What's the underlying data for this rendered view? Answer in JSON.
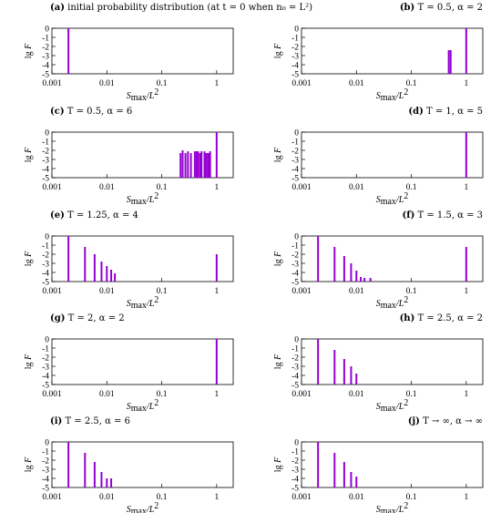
{
  "figure": {
    "xlabel_main": "S",
    "xlabel_sub": "max",
    "xlabel_rest": "/L",
    "xlabel_sup": "2",
    "ylabel_main": "lg ",
    "ylabel_var": "F"
  },
  "chart_data": [
    {
      "id": "a",
      "title_tag": "(a)",
      "title_text": "initial probability distribution (at t = 0 when n₀ = L²)",
      "type": "bar",
      "color": "#9400d3",
      "x_scale": "log",
      "xlim": [
        0.001,
        2
      ],
      "ylim": [
        -5,
        0
      ],
      "x_ticks": [
        "0.001",
        "0.01",
        "0.1",
        "1"
      ],
      "y_ticks": [
        "0",
        "-1",
        "-2",
        "-3",
        "-4",
        "-5"
      ],
      "x": [
        0.002
      ],
      "y": [
        0
      ]
    },
    {
      "id": "b",
      "title_tag": "(b)",
      "title_text": "T = 0.5, α = 2",
      "type": "bar",
      "color": "#9400d3",
      "x_scale": "log",
      "xlim": [
        0.001,
        2
      ],
      "ylim": [
        -5,
        0
      ],
      "x_ticks": [
        "0.001",
        "0.01",
        "0.1",
        "1"
      ],
      "y_ticks": [
        "0",
        "-1",
        "-2",
        "-3",
        "-4",
        "-5"
      ],
      "x": [
        0.48,
        0.52,
        1.0
      ],
      "y": [
        -2.4,
        -2.4,
        0
      ]
    },
    {
      "id": "c",
      "title_tag": "(c)",
      "title_text": "T = 0.5, α = 6",
      "type": "bar",
      "color": "#9400d3",
      "x_scale": "log",
      "xlim": [
        0.001,
        2
      ],
      "ylim": [
        -5,
        0
      ],
      "x_ticks": [
        "0.001",
        "0.01",
        "0.1",
        "1"
      ],
      "y_ticks": [
        "0",
        "-1",
        "-2",
        "-3",
        "-4",
        "-5"
      ],
      "x": [
        0.22,
        0.24,
        0.27,
        0.3,
        0.34,
        0.4,
        0.43,
        0.46,
        0.5,
        0.53,
        0.6,
        0.64,
        0.69,
        0.72,
        0.76,
        1.0
      ],
      "y": [
        -2.3,
        -2.0,
        -2.3,
        -2.1,
        -2.3,
        -2.1,
        -2.1,
        -2.1,
        -2.3,
        -2.1,
        -2.1,
        -2.3,
        -2.3,
        -2.3,
        -2.1,
        0
      ]
    },
    {
      "id": "d",
      "title_tag": "(d)",
      "title_text": "T = 1, α = 5",
      "type": "bar",
      "color": "#9400d3",
      "x_scale": "log",
      "xlim": [
        0.001,
        2
      ],
      "ylim": [
        -5,
        0
      ],
      "x_ticks": [
        "0.001",
        "0.01",
        "0.1",
        "1"
      ],
      "y_ticks": [
        "0",
        "-1",
        "-2",
        "-3",
        "-4",
        "-5"
      ],
      "x": [
        1.0
      ],
      "y": [
        0
      ]
    },
    {
      "id": "e",
      "title_tag": "(e)",
      "title_text": "T = 1.25, α = 4",
      "type": "bar",
      "color": "#9400d3",
      "x_scale": "log",
      "xlim": [
        0.001,
        2
      ],
      "ylim": [
        -5,
        0
      ],
      "x_ticks": [
        "0.001",
        "0.01",
        "0.1",
        "1"
      ],
      "y_ticks": [
        "0",
        "-1",
        "-2",
        "-3",
        "-4",
        "-5"
      ],
      "x": [
        0.002,
        0.004,
        0.006,
        0.008,
        0.01,
        0.012,
        0.014,
        1.0
      ],
      "y": [
        0,
        -1.2,
        -2.0,
        -2.8,
        -3.3,
        -3.7,
        -4.1,
        -2.0
      ]
    },
    {
      "id": "f",
      "title_tag": "(f)",
      "title_text": "T = 1.5, α = 3",
      "type": "bar",
      "color": "#9400d3",
      "x_scale": "log",
      "xlim": [
        0.001,
        2
      ],
      "ylim": [
        -5,
        0
      ],
      "x_ticks": [
        "0.001",
        "0.01",
        "0.1",
        "1"
      ],
      "y_ticks": [
        "0",
        "-1",
        "-2",
        "-3",
        "-4",
        "-5"
      ],
      "x": [
        0.002,
        0.004,
        0.006,
        0.008,
        0.01,
        0.012,
        0.014,
        0.018,
        1.0
      ],
      "y": [
        0,
        -1.2,
        -2.2,
        -3.0,
        -3.8,
        -4.5,
        -4.6,
        -4.6,
        -1.2
      ]
    },
    {
      "id": "g",
      "title_tag": "(g)",
      "title_text": "T = 2, α = 2",
      "type": "bar",
      "color": "#9400d3",
      "x_scale": "log",
      "xlim": [
        0.001,
        2
      ],
      "ylim": [
        -5,
        0
      ],
      "x_ticks": [
        "0.001",
        "0.01",
        "0.1",
        "1"
      ],
      "y_ticks": [
        "0",
        "-1",
        "-2",
        "-3",
        "-4",
        "-5"
      ],
      "x": [
        1.0
      ],
      "y": [
        0
      ]
    },
    {
      "id": "h",
      "title_tag": "(h)",
      "title_text": "T = 2.5, α = 2",
      "type": "bar",
      "color": "#9400d3",
      "x_scale": "log",
      "xlim": [
        0.001,
        2
      ],
      "ylim": [
        -5,
        0
      ],
      "x_ticks": [
        "0.001",
        "0.01",
        "0.1",
        "1"
      ],
      "y_ticks": [
        "0",
        "-1",
        "-2",
        "-3",
        "-4",
        "-5"
      ],
      "x": [
        0.002,
        0.004,
        0.006,
        0.008,
        0.01
      ],
      "y": [
        0,
        -1.2,
        -2.2,
        -3.0,
        -3.8
      ]
    },
    {
      "id": "i",
      "title_tag": "(i)",
      "title_text": "T = 2.5, α = 6",
      "type": "bar",
      "color": "#9400d3",
      "x_scale": "log",
      "xlim": [
        0.001,
        2
      ],
      "ylim": [
        -5,
        0
      ],
      "x_ticks": [
        "0.001",
        "0.01",
        "0.1",
        "1"
      ],
      "y_ticks": [
        "0",
        "-1",
        "-2",
        "-3",
        "-4",
        "-5"
      ],
      "x": [
        0.002,
        0.004,
        0.006,
        0.008,
        0.01,
        0.012
      ],
      "y": [
        0,
        -1.2,
        -2.2,
        -3.3,
        -4.0,
        -4.0
      ]
    },
    {
      "id": "j",
      "title_tag": "(j)",
      "title_text": "T → ∞, α → ∞",
      "type": "bar",
      "color": "#9400d3",
      "x_scale": "log",
      "xlim": [
        0.001,
        2
      ],
      "ylim": [
        -5,
        0
      ],
      "x_ticks": [
        "0.001",
        "0.01",
        "0.1",
        "1"
      ],
      "y_ticks": [
        "0",
        "-1",
        "-2",
        "-3",
        "-4",
        "-5"
      ],
      "x": [
        0.002,
        0.004,
        0.006,
        0.008,
        0.01
      ],
      "y": [
        0,
        -1.2,
        -2.2,
        -3.3,
        -3.8
      ]
    }
  ]
}
